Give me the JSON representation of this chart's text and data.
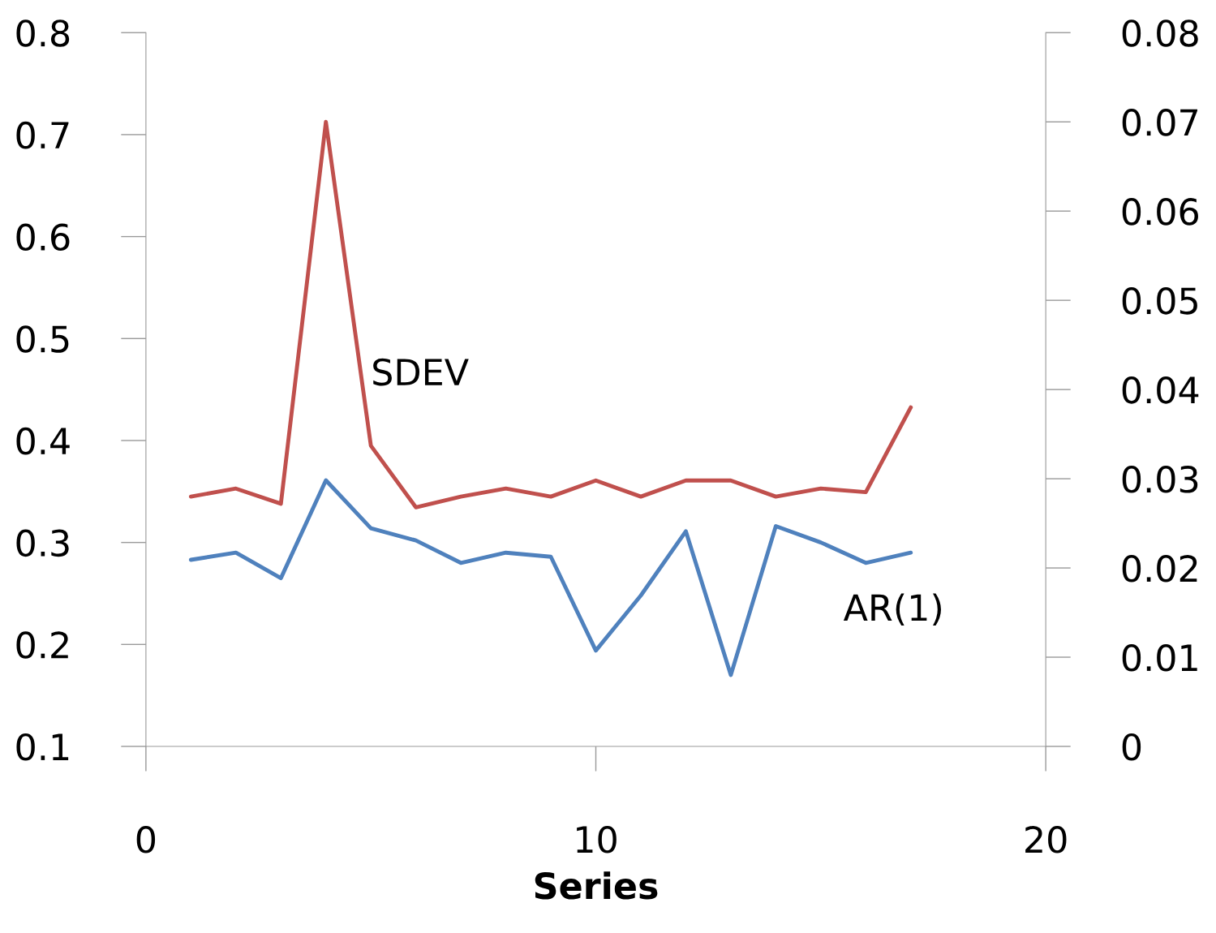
{
  "chart_data": {
    "type": "line",
    "xlabel": "Series",
    "xlim": [
      0,
      20
    ],
    "xticks": [
      0,
      10,
      20
    ],
    "ylim": [
      0.1,
      0.8
    ],
    "yticks": [
      0.1,
      0.2,
      0.3,
      0.4,
      0.5,
      0.6,
      0.7,
      0.8
    ],
    "y2lim": [
      0,
      0.08
    ],
    "y2ticks": [
      0,
      0.01,
      0.02,
      0.03,
      0.04,
      0.05,
      0.06,
      0.07,
      0.08
    ],
    "grid": false,
    "legend": false,
    "marker": "none",
    "line_style": "solid",
    "x": [
      1,
      2,
      3,
      4,
      5,
      6,
      7,
      8,
      9,
      10,
      11,
      12,
      13,
      14,
      15,
      16,
      17
    ],
    "series": [
      {
        "name": "SDEV",
        "color": "#c0504d",
        "axis": "y2",
        "values": [
          0.028,
          0.0289,
          0.0272,
          0.07,
          0.0337,
          0.0268,
          0.028,
          0.0289,
          0.028,
          0.0298,
          0.028,
          0.0298,
          0.0298,
          0.028,
          0.0289,
          0.0285,
          0.038
        ]
      },
      {
        "name": "AR(1)",
        "color": "#4f81bd",
        "values": [
          0.283,
          0.29,
          0.265,
          0.361,
          0.314,
          0.302,
          0.28,
          0.29,
          0.286,
          0.194,
          0.248,
          0.311,
          0.17,
          0.316,
          0.3,
          0.28,
          0.29
        ]
      }
    ]
  }
}
